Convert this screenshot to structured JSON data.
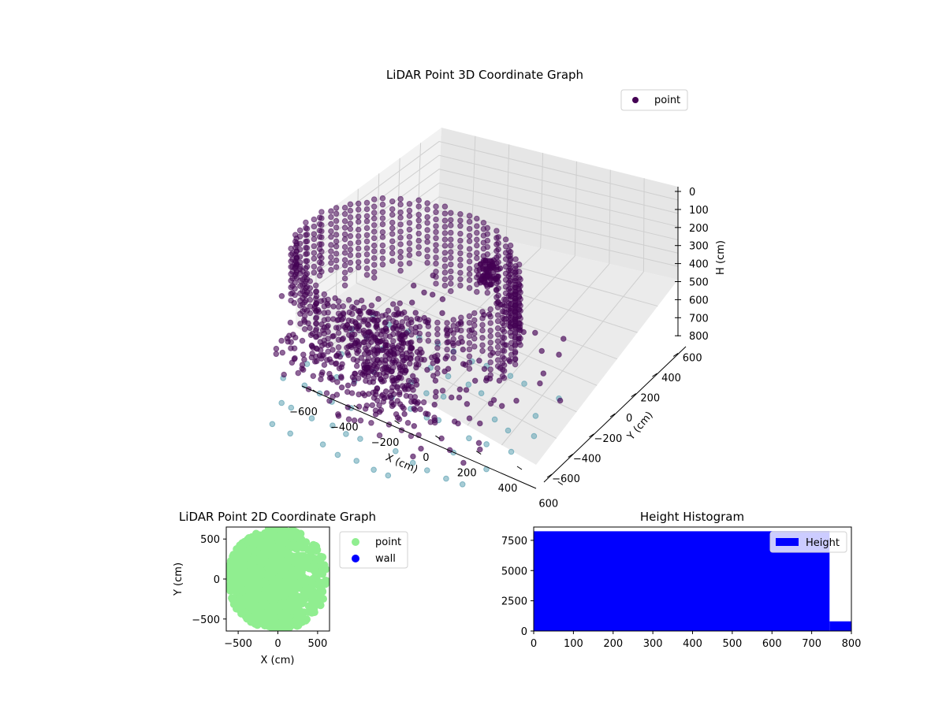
{
  "figure": {
    "colors": {
      "point3d": "#440154",
      "floor_points": "#5fa2b3",
      "point2d": "#90ee90",
      "wall": "#0000ff",
      "hist": "#0000ff"
    }
  },
  "chart_data": [
    {
      "type": "scatter",
      "projection": "3d",
      "title": "LiDAR Point 3D Coordinate Graph",
      "xlabel": "X (cm)",
      "ylabel": "Y (cm)",
      "zlabel": "H (cm)",
      "xticks": [
        "−600",
        "−400",
        "−200",
        "0",
        "200",
        "400",
        "600"
      ],
      "yticks": [
        "−600",
        "−400",
        "−200",
        "0",
        "200",
        "400",
        "600"
      ],
      "zticks": [
        "0",
        "100",
        "200",
        "300",
        "400",
        "500",
        "600",
        "700",
        "800"
      ],
      "xlim": [
        -650,
        650
      ],
      "ylim": [
        -650,
        650
      ],
      "zlim": [
        0,
        800
      ],
      "z_inverted": true,
      "legend": {
        "position": "top-right",
        "entries": [
          "point"
        ]
      },
      "series": [
        {
          "name": "point",
          "description_of_shape": "approximate ring of points around radius 500–600 cm from H 0 to 700 cm plus inner wedge cluster",
          "sample_points": [
            [
              -550,
              0,
              50
            ],
            [
              -500,
              250,
              80
            ],
            [
              -350,
              450,
              60
            ],
            [
              0,
              600,
              40
            ],
            [
              350,
              480,
              60
            ],
            [
              550,
              250,
              100
            ],
            [
              600,
              0,
              200
            ],
            [
              550,
              -200,
              400
            ],
            [
              400,
              -400,
              650
            ],
            [
              200,
              -550,
              700
            ],
            [
              -200,
              -500,
              650
            ],
            [
              -450,
              -300,
              500
            ],
            [
              -600,
              100,
              300
            ],
            [
              -300,
              -100,
              600
            ],
            [
              0,
              -200,
              700
            ],
            [
              100,
              300,
              300
            ],
            [
              300,
              200,
              400
            ],
            [
              450,
              350,
              500
            ],
            [
              -100,
              200,
              200
            ],
            [
              200,
              -100,
              600
            ]
          ]
        }
      ]
    },
    {
      "type": "scatter",
      "title": "LiDAR Point 2D Coordinate Graph",
      "xlabel": "X (cm)",
      "ylabel": "Y (cm)",
      "xticks": [
        "−500",
        "0",
        "500"
      ],
      "yticks": [
        "−500",
        "0",
        "500"
      ],
      "xlim": [
        -650,
        650
      ],
      "ylim": [
        -650,
        650
      ],
      "legend": {
        "position": "outside-right",
        "entries": [
          "point",
          "wall"
        ]
      },
      "series": [
        {
          "name": "point",
          "shape": "dense disc roughly radius 600 cm, sparser on right side"
        },
        {
          "name": "wall",
          "points": []
        }
      ]
    },
    {
      "type": "bar",
      "title": "Height Histogram",
      "xticks": [
        "0",
        "100",
        "200",
        "300",
        "400",
        "500",
        "600",
        "700",
        "800"
      ],
      "yticks": [
        "0",
        "2500",
        "5000",
        "7500"
      ],
      "xlim": [
        0,
        800
      ],
      "ylim": [
        0,
        8600
      ],
      "legend": {
        "position": "top-right",
        "entries": [
          "Height"
        ]
      },
      "bins": [
        {
          "x0": 0,
          "x1": 745,
          "count": 8250
        },
        {
          "x0": 745,
          "x1": 800,
          "count": 800
        }
      ]
    }
  ]
}
